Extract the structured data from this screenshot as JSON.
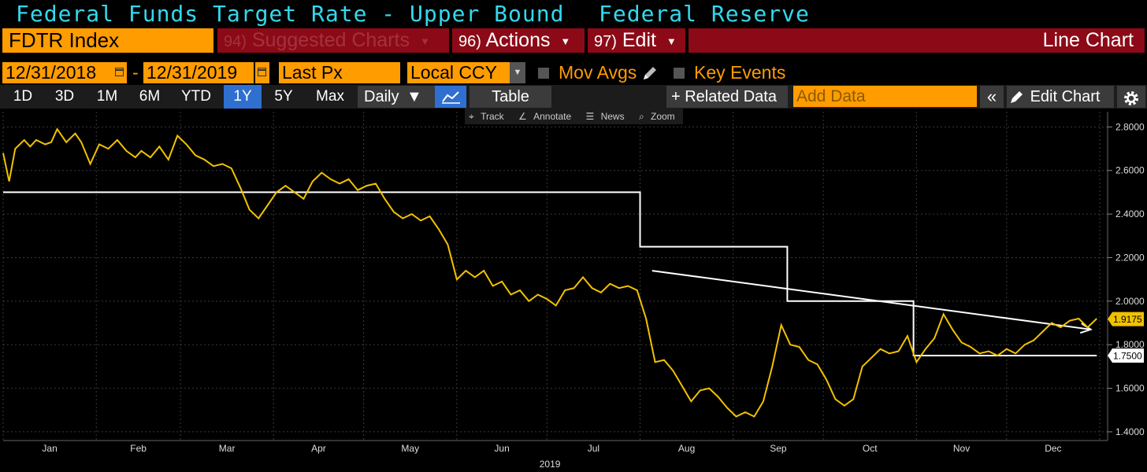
{
  "header": {
    "title": "Federal Funds Target Rate - Upper Bound",
    "source": "Federal Reserve"
  },
  "toolbar": {
    "ticker": "FDTR Index",
    "suggested_num": "94)",
    "suggested_label": "Suggested Charts",
    "actions_num": "96)",
    "actions_label": "Actions",
    "edit_num": "97)",
    "edit_label": "Edit",
    "chart_type": "Line Chart"
  },
  "dates": {
    "start": "12/31/2018",
    "separator": "-",
    "end": "12/31/2019",
    "field": "Last Px",
    "currency": "Local CCY",
    "mov_avgs": "Mov Avgs",
    "key_events": "Key Events"
  },
  "periods": [
    "1D",
    "3D",
    "1M",
    "6M",
    "YTD",
    "1Y",
    "5Y",
    "Max"
  ],
  "active_period": "1Y",
  "controls": {
    "frequency": "Daily",
    "table": "Table",
    "related_data": "+ Related Data",
    "add_data_placeholder": "Add Data",
    "edit_chart": "Edit Chart"
  },
  "chart_tools": [
    "Track",
    "Annotate",
    "News",
    "Zoom"
  ],
  "colors": {
    "title": "#34d8ec",
    "orange": "#ff9c00",
    "menu_red": "#8c0a17",
    "active_blue": "#2f6fd0",
    "series_yield": "#f2c200",
    "series_fdtr": "#ffffff"
  },
  "chart_data": {
    "type": "line",
    "year_label": "2019",
    "x_ticks": [
      "Jan",
      "Feb",
      "Mar",
      "Apr",
      "May",
      "Jun",
      "Jul",
      "Aug",
      "Sep",
      "Oct",
      "Nov",
      "Dec"
    ],
    "y_ticks": [
      "2.8000",
      "2.6000",
      "2.4000",
      "2.2000",
      "2.0000",
      "1.8000",
      "1.6000",
      "1.4000"
    ],
    "ylim": [
      1.36,
      2.87
    ],
    "x_range_days": [
      0,
      365
    ],
    "grid": true,
    "last_labels": [
      {
        "value": 1.9175,
        "text": "1.9175",
        "series": "yield"
      },
      {
        "value": 1.75,
        "text": "1.7500",
        "series": "fdtr"
      }
    ],
    "fdtr_series": {
      "points": [
        [
          0,
          2.5
        ],
        [
          212,
          2.5
        ],
        [
          212,
          2.25
        ],
        [
          261,
          2.25
        ],
        [
          261,
          2.0
        ],
        [
          303,
          2.0
        ],
        [
          303,
          1.75
        ],
        [
          364,
          1.75
        ]
      ]
    },
    "trendline": {
      "start": [
        216,
        2.14
      ],
      "end": [
        362,
        1.87
      ]
    },
    "yield_series": {
      "points": [
        [
          0,
          2.68
        ],
        [
          2,
          2.55
        ],
        [
          4,
          2.7
        ],
        [
          7,
          2.74
        ],
        [
          9,
          2.71
        ],
        [
          11,
          2.74
        ],
        [
          14,
          2.72
        ],
        [
          16,
          2.73
        ],
        [
          18,
          2.79
        ],
        [
          21,
          2.73
        ],
        [
          24,
          2.77
        ],
        [
          26,
          2.73
        ],
        [
          29,
          2.63
        ],
        [
          32,
          2.72
        ],
        [
          35,
          2.7
        ],
        [
          38,
          2.74
        ],
        [
          41,
          2.69
        ],
        [
          44,
          2.66
        ],
        [
          46,
          2.69
        ],
        [
          49,
          2.66
        ],
        [
          52,
          2.71
        ],
        [
          55,
          2.65
        ],
        [
          58,
          2.76
        ],
        [
          61,
          2.72
        ],
        [
          64,
          2.67
        ],
        [
          67,
          2.65
        ],
        [
          70,
          2.62
        ],
        [
          73,
          2.63
        ],
        [
          76,
          2.61
        ],
        [
          79,
          2.52
        ],
        [
          82,
          2.42
        ],
        [
          85,
          2.38
        ],
        [
          88,
          2.44
        ],
        [
          91,
          2.5
        ],
        [
          94,
          2.53
        ],
        [
          97,
          2.5
        ],
        [
          100,
          2.47
        ],
        [
          103,
          2.55
        ],
        [
          106,
          2.59
        ],
        [
          109,
          2.56
        ],
        [
          112,
          2.54
        ],
        [
          115,
          2.56
        ],
        [
          118,
          2.51
        ],
        [
          121,
          2.53
        ],
        [
          124,
          2.54
        ],
        [
          127,
          2.47
        ],
        [
          130,
          2.41
        ],
        [
          133,
          2.38
        ],
        [
          136,
          2.4
        ],
        [
          139,
          2.37
        ],
        [
          142,
          2.39
        ],
        [
          145,
          2.33
        ],
        [
          148,
          2.26
        ],
        [
          151,
          2.1
        ],
        [
          154,
          2.14
        ],
        [
          157,
          2.11
        ],
        [
          160,
          2.14
        ],
        [
          163,
          2.07
        ],
        [
          166,
          2.09
        ],
        [
          169,
          2.03
        ],
        [
          172,
          2.05
        ],
        [
          175,
          2.0
        ],
        [
          178,
          2.03
        ],
        [
          181,
          2.01
        ],
        [
          184,
          1.98
        ],
        [
          187,
          2.05
        ],
        [
          190,
          2.06
        ],
        [
          193,
          2.11
        ],
        [
          196,
          2.06
        ],
        [
          199,
          2.04
        ],
        [
          202,
          2.08
        ],
        [
          205,
          2.06
        ],
        [
          208,
          2.07
        ],
        [
          211,
          2.05
        ],
        [
          214,
          1.92
        ],
        [
          217,
          1.72
        ],
        [
          220,
          1.73
        ],
        [
          223,
          1.68
        ],
        [
          226,
          1.61
        ],
        [
          229,
          1.54
        ],
        [
          232,
          1.59
        ],
        [
          235,
          1.6
        ],
        [
          238,
          1.56
        ],
        [
          241,
          1.51
        ],
        [
          244,
          1.47
        ],
        [
          247,
          1.49
        ],
        [
          250,
          1.47
        ],
        [
          253,
          1.54
        ],
        [
          256,
          1.7
        ],
        [
          259,
          1.89
        ],
        [
          262,
          1.8
        ],
        [
          265,
          1.79
        ],
        [
          268,
          1.73
        ],
        [
          271,
          1.71
        ],
        [
          274,
          1.64
        ],
        [
          277,
          1.55
        ],
        [
          280,
          1.52
        ],
        [
          283,
          1.55
        ],
        [
          286,
          1.7
        ],
        [
          289,
          1.74
        ],
        [
          292,
          1.78
        ],
        [
          295,
          1.76
        ],
        [
          298,
          1.77
        ],
        [
          301,
          1.84
        ],
        [
          304,
          1.72
        ],
        [
          307,
          1.78
        ],
        [
          310,
          1.83
        ],
        [
          313,
          1.94
        ],
        [
          316,
          1.87
        ],
        [
          319,
          1.81
        ],
        [
          322,
          1.79
        ],
        [
          325,
          1.76
        ],
        [
          328,
          1.77
        ],
        [
          331,
          1.75
        ],
        [
          334,
          1.78
        ],
        [
          337,
          1.76
        ],
        [
          340,
          1.8
        ],
        [
          343,
          1.82
        ],
        [
          346,
          1.86
        ],
        [
          349,
          1.9
        ],
        [
          352,
          1.88
        ],
        [
          355,
          1.91
        ],
        [
          358,
          1.92
        ],
        [
          361,
          1.88
        ],
        [
          364,
          1.92
        ]
      ]
    }
  }
}
